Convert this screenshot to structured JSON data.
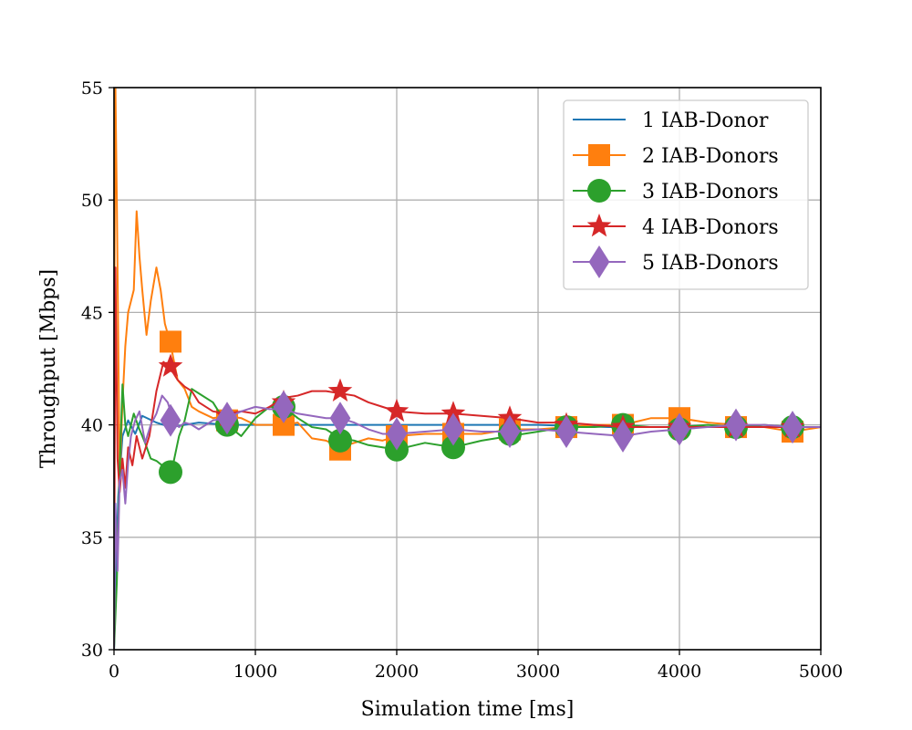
{
  "chart_data": {
    "type": "line",
    "title": "",
    "xlabel": "Simulation time [ms]",
    "ylabel": "Throughput [Mbps]",
    "xlim": [
      0,
      5000
    ],
    "ylim": [
      30,
      55
    ],
    "xticks": [
      0,
      1000,
      2000,
      3000,
      4000,
      5000
    ],
    "yticks": [
      30,
      35,
      40,
      45,
      50,
      55
    ],
    "grid": true,
    "legend_position": "top-right",
    "series": [
      {
        "name": "1 IAB-Donor",
        "color": "#1f77b4",
        "marker": "none",
        "x": [
          0,
          30,
          60,
          100,
          150,
          200,
          300,
          400,
          600,
          800,
          1000,
          1500,
          2000,
          2500,
          3000,
          3500,
          4000,
          4500,
          5000
        ],
        "y": [
          30,
          36.8,
          39.5,
          40.2,
          39.6,
          40.4,
          40.1,
          39.9,
          40.1,
          40.0,
          40.0,
          40.0,
          40.0,
          40.0,
          40.0,
          39.9,
          39.9,
          39.9,
          39.9
        ]
      },
      {
        "name": "2 IAB-Donors",
        "color": "#ff7f0e",
        "marker": "square",
        "x": [
          0,
          10,
          20,
          40,
          60,
          80,
          100,
          120,
          140,
          160,
          180,
          200,
          230,
          260,
          300,
          330,
          360,
          400,
          450,
          500,
          550,
          600,
          700,
          800,
          900,
          1000,
          1100,
          1200,
          1300,
          1400,
          1500,
          1600,
          1700,
          1800,
          1900,
          2000,
          2200,
          2400,
          2600,
          2800,
          3000,
          3200,
          3400,
          3600,
          3800,
          4000,
          4200,
          4400,
          4600,
          4800,
          5000
        ],
        "y": [
          42,
          55,
          50,
          37.5,
          41,
          43.5,
          45,
          45.5,
          46,
          49.5,
          47.5,
          46,
          44,
          45.5,
          47,
          46,
          44.5,
          43.6,
          42,
          41.6,
          40.8,
          40.6,
          40.3,
          40.4,
          40.3,
          40.0,
          40.0,
          40.0,
          40.1,
          39.4,
          39.3,
          39.0,
          39.2,
          39.4,
          39.3,
          39.5,
          39.6,
          39.6,
          39.6,
          39.8,
          39.8,
          39.9,
          40.0,
          40.0,
          40.3,
          40.3,
          40.1,
          40.0,
          39.9,
          39.7,
          39.9
        ],
        "marker_x": [
          400,
          800,
          1200,
          1600,
          2000,
          2400,
          2800,
          3200,
          3600,
          4000,
          4400,
          4800
        ],
        "marker_y": [
          43.7,
          40.2,
          40.0,
          38.9,
          39.5,
          39.6,
          39.8,
          39.9,
          40.0,
          40.3,
          39.9,
          39.7
        ]
      },
      {
        "name": "3 IAB-Donors",
        "color": "#2ca02c",
        "marker": "circle",
        "x": [
          0,
          20,
          40,
          60,
          80,
          100,
          140,
          180,
          220,
          260,
          300,
          340,
          380,
          420,
          460,
          500,
          550,
          600,
          700,
          800,
          900,
          1000,
          1100,
          1200,
          1300,
          1400,
          1500,
          1600,
          1700,
          1800,
          1900,
          2000,
          2200,
          2400,
          2600,
          2800,
          3000,
          3200,
          3400,
          3600,
          3800,
          4000,
          4200,
          4400,
          4600,
          4800,
          5000
        ],
        "y": [
          30,
          33,
          38,
          41.8,
          40.0,
          39.5,
          40.5,
          39.8,
          39.2,
          38.5,
          38.4,
          38.2,
          38.0,
          38.3,
          39.5,
          40.2,
          41.6,
          41.4,
          41.0,
          40.0,
          39.5,
          40.3,
          40.8,
          40.8,
          40.3,
          39.9,
          39.8,
          39.4,
          39.3,
          39.1,
          39.0,
          38.9,
          39.2,
          39.0,
          39.3,
          39.5,
          39.7,
          39.9,
          39.9,
          40.0,
          39.9,
          39.9,
          40.0,
          39.9,
          40.0,
          39.9,
          39.9
        ],
        "marker_x": [
          400,
          800,
          1200,
          1600,
          2000,
          2400,
          2800,
          3200,
          3600,
          4000,
          4400,
          4800
        ],
        "marker_y": [
          37.9,
          40.0,
          40.8,
          39.3,
          38.9,
          39.0,
          39.6,
          39.9,
          40.0,
          39.8,
          39.9,
          39.9
        ]
      },
      {
        "name": "4 IAB-Donors",
        "color": "#d62728",
        "marker": "star",
        "x": [
          0,
          10,
          25,
          40,
          60,
          80,
          100,
          130,
          160,
          200,
          250,
          300,
          350,
          400,
          450,
          500,
          550,
          600,
          700,
          800,
          900,
          1000,
          1100,
          1200,
          1300,
          1400,
          1500,
          1600,
          1700,
          1800,
          1900,
          2000,
          2200,
          2400,
          2600,
          2800,
          3000,
          3200,
          3400,
          3600,
          3800,
          4000,
          4200,
          4400,
          4600,
          4800,
          5000
        ],
        "y": [
          30,
          47,
          38.5,
          37.0,
          38.5,
          37.2,
          39.0,
          38.2,
          39.5,
          38.5,
          39.5,
          41.5,
          42.8,
          42.5,
          42.0,
          41.7,
          41.5,
          41.0,
          40.6,
          40.5,
          40.6,
          40.5,
          40.8,
          41.2,
          41.3,
          41.5,
          41.5,
          41.4,
          41.3,
          41.0,
          40.8,
          40.6,
          40.5,
          40.5,
          40.4,
          40.3,
          40.1,
          40.1,
          40.0,
          39.9,
          39.9,
          39.9,
          39.9,
          39.9,
          39.9,
          39.9,
          39.9
        ],
        "marker_x": [
          400,
          800,
          1200,
          1600,
          2000,
          2400,
          2800,
          3200,
          3600,
          4000,
          4400,
          4800
        ],
        "marker_y": [
          42.6,
          40.4,
          41.0,
          41.5,
          40.6,
          40.5,
          40.3,
          40.0,
          39.9,
          39.9,
          39.9,
          39.9
        ]
      },
      {
        "name": "5 IAB-Donors",
        "color": "#9467bd",
        "marker": "diamond",
        "x": [
          0,
          10,
          25,
          40,
          60,
          80,
          100,
          120,
          150,
          180,
          220,
          260,
          300,
          340,
          380,
          420,
          460,
          500,
          550,
          600,
          700,
          800,
          900,
          1000,
          1100,
          1200,
          1300,
          1400,
          1500,
          1600,
          1700,
          1800,
          1900,
          2000,
          2200,
          2400,
          2600,
          2800,
          3000,
          3200,
          3400,
          3600,
          3800,
          4000,
          4200,
          4400,
          4600,
          4800,
          5000
        ],
        "y": [
          30,
          36.5,
          33.5,
          37.5,
          38.0,
          36.5,
          38.3,
          39.5,
          40.2,
          40.6,
          39.2,
          40.0,
          40.5,
          41.3,
          41.0,
          40.2,
          39.9,
          40.1,
          40.0,
          39.8,
          40.2,
          40.3,
          40.6,
          40.8,
          40.7,
          40.7,
          40.5,
          40.4,
          40.3,
          40.3,
          40.1,
          39.8,
          39.6,
          39.6,
          39.7,
          39.8,
          39.7,
          39.7,
          39.8,
          39.7,
          39.6,
          39.5,
          39.7,
          39.8,
          39.9,
          40.0,
          40.0,
          39.9,
          39.9
        ],
        "marker_x": [
          400,
          800,
          1200,
          1600,
          2000,
          2400,
          2800,
          3200,
          3600,
          4000,
          4400,
          4800
        ],
        "marker_y": [
          40.2,
          40.3,
          40.8,
          40.3,
          39.6,
          39.8,
          39.7,
          39.7,
          39.5,
          39.8,
          40.0,
          39.9
        ]
      }
    ]
  }
}
